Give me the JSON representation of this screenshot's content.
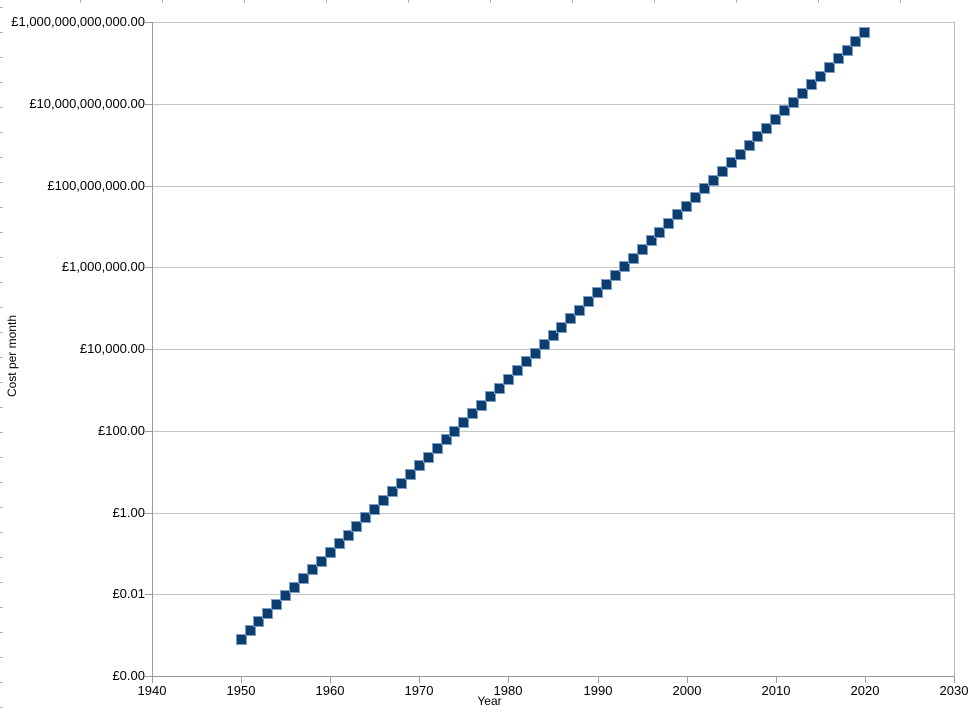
{
  "chart_data": {
    "type": "scatter",
    "title": "",
    "xlabel": "Year",
    "ylabel": "Cost per month",
    "legend": "none",
    "grid": "horizontal-only",
    "x_axis": {
      "min": 1940,
      "max": 2030,
      "tick_interval": 10,
      "tick_labels": [
        "1940",
        "1950",
        "1960",
        "1970",
        "1980",
        "1990",
        "2000",
        "2010",
        "2020",
        "2030"
      ]
    },
    "y_axis": {
      "scale": "log",
      "min": 0.0001,
      "max": 1000000000000,
      "tick_values": [
        0.0001,
        0.01,
        1,
        100,
        10000,
        1000000,
        100000000,
        10000000000,
        1000000000000
      ],
      "tick_labels": [
        "£0.00",
        "£0.01",
        "£1.00",
        "£100.00",
        "£10,000.00",
        "£1,000,000.00",
        "£100,000,000.00",
        "£10,000,000,000.00",
        "£1,000,000,000,000.00"
      ]
    },
    "series": [
      {
        "name": "Cost per month",
        "marker": "square",
        "color": "#0c3d6f",
        "border_color": "#7e9fc5",
        "points": [
          [
            1950,
            0.0008
          ],
          [
            1951,
            0.0013
          ],
          [
            1952,
            0.00212
          ],
          [
            1953,
            0.00346
          ],
          [
            1954,
            0.00563
          ],
          [
            1955,
            0.00917
          ],
          [
            1956,
            0.0149
          ],
          [
            1957,
            0.0243
          ],
          [
            1958,
            0.0396
          ],
          [
            1959,
            0.0645
          ],
          [
            1960,
            0.105
          ],
          [
            1961,
            0.171
          ],
          [
            1962,
            0.279
          ],
          [
            1963,
            0.454
          ],
          [
            1964,
            0.74
          ],
          [
            1965,
            1.2
          ],
          [
            1966,
            1.96
          ],
          [
            1967,
            3.2
          ],
          [
            1968,
            5.21
          ],
          [
            1969,
            8.48
          ],
          [
            1970,
            13.8
          ],
          [
            1971,
            22.5
          ],
          [
            1972,
            36.6
          ],
          [
            1973,
            59.6
          ],
          [
            1974,
            97.2
          ],
          [
            1975,
            158
          ],
          [
            1976,
            258
          ],
          [
            1977,
            420
          ],
          [
            1978,
            684
          ],
          [
            1979,
            1110
          ],
          [
            1980,
            1810
          ],
          [
            1981,
            2950
          ],
          [
            1982,
            4810
          ],
          [
            1983,
            7840
          ],
          [
            1984,
            12800
          ],
          [
            1985,
            20800
          ],
          [
            1986,
            33900
          ],
          [
            1987,
            55100
          ],
          [
            1988,
            89800
          ],
          [
            1989,
            146000
          ],
          [
            1990,
            238000
          ],
          [
            1991,
            388000
          ],
          [
            1992,
            632000
          ],
          [
            1993,
            1030000
          ],
          [
            1994,
            1680000
          ],
          [
            1995,
            2730000
          ],
          [
            1996,
            4450000
          ],
          [
            1997,
            7240000
          ],
          [
            1998,
            11800000
          ],
          [
            1999,
            19200000
          ],
          [
            2000,
            31300000
          ],
          [
            2001,
            51000000
          ],
          [
            2002,
            83100000
          ],
          [
            2003,
            135000000
          ],
          [
            2004,
            220000000
          ],
          [
            2005,
            359000000
          ],
          [
            2006,
            584000000
          ],
          [
            2007,
            952000000
          ],
          [
            2008,
            1550000000
          ],
          [
            2009,
            2530000000
          ],
          [
            2010,
            4110000000
          ],
          [
            2011,
            6700000000
          ],
          [
            2012,
            10900000000
          ],
          [
            2013,
            17800000000
          ],
          [
            2014,
            28900000000
          ],
          [
            2015,
            47100000000
          ],
          [
            2016,
            76800000000
          ],
          [
            2017,
            125000000000
          ],
          [
            2018,
            204000000000
          ],
          [
            2019,
            332000000000
          ],
          [
            2020,
            540000000000
          ]
        ]
      }
    ]
  },
  "colors": {
    "background": "#ffffff",
    "gridline": "#c6c6c6",
    "axis": "#9b9b9b",
    "text": "#000000",
    "marker_fill": "#0c3d6f",
    "marker_border": "#7e9fc5"
  }
}
